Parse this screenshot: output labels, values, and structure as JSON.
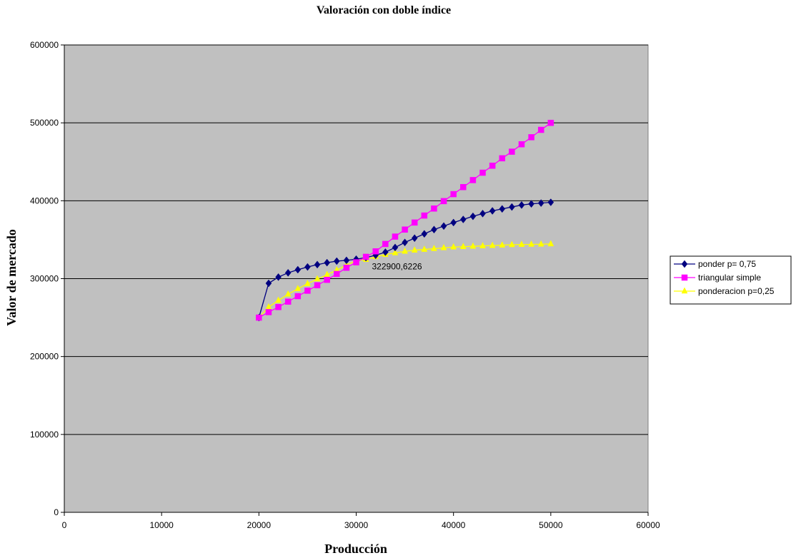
{
  "chart_data": {
    "type": "line",
    "title": "Valoración con doble índice",
    "xlabel": "Producción",
    "ylabel": "Valor de mercado",
    "xlim": [
      0,
      60000
    ],
    "ylim": [
      0,
      600000
    ],
    "x_ticks": [
      0,
      10000,
      20000,
      30000,
      40000,
      50000,
      60000
    ],
    "y_ticks": [
      0,
      100000,
      200000,
      300000,
      400000,
      500000,
      600000
    ],
    "grid": "horizontal",
    "plot_background": "#c0c0c0",
    "legend_position": "right",
    "x": [
      20000,
      21000,
      22000,
      23000,
      24000,
      25000,
      26000,
      27000,
      28000,
      29000,
      30000,
      31000,
      32000,
      33000,
      34000,
      35000,
      36000,
      37000,
      38000,
      39000,
      40000,
      41000,
      42000,
      43000,
      44000,
      45000,
      46000,
      47000,
      48000,
      49000,
      50000
    ],
    "series": [
      {
        "name": "ponder p= 0,75",
        "color": "#000080",
        "marker": "diamond",
        "values": [
          250000,
          294000,
          302000,
          307500,
          311500,
          315000,
          318000,
          320500,
          322500,
          323500,
          325000,
          327000,
          330000,
          334000,
          340000,
          346500,
          352000,
          357500,
          363000,
          367500,
          372000,
          376000,
          380000,
          383500,
          387000,
          389500,
          392000,
          394500,
          396000,
          397000,
          398000
        ]
      },
      {
        "name": "triangular simple",
        "color": "#ff00ff",
        "marker": "square",
        "values": [
          250000,
          257000,
          263500,
          270500,
          277500,
          284500,
          291500,
          298500,
          306000,
          314000,
          321000,
          328000,
          335000,
          344500,
          354000,
          363000,
          372000,
          381000,
          390000,
          399500,
          408500,
          417500,
          426500,
          436000,
          445000,
          454500,
          463000,
          472500,
          481500,
          491000,
          500000
        ]
      },
      {
        "name": "ponderacion p=0,25",
        "color": "#ffff00",
        "marker": "triangle",
        "values": [
          250000,
          263500,
          272000,
          280000,
          287000,
          293500,
          299500,
          305000,
          311000,
          317500,
          322900,
          324500,
          328000,
          331000,
          333000,
          335000,
          336500,
          337500,
          338500,
          339500,
          340500,
          341000,
          341500,
          342000,
          342500,
          343000,
          343500,
          343800,
          344000,
          344200,
          344500
        ]
      }
    ],
    "annotations": [
      {
        "text": "322900,6226",
        "x": 30000,
        "y": 322900
      }
    ]
  }
}
